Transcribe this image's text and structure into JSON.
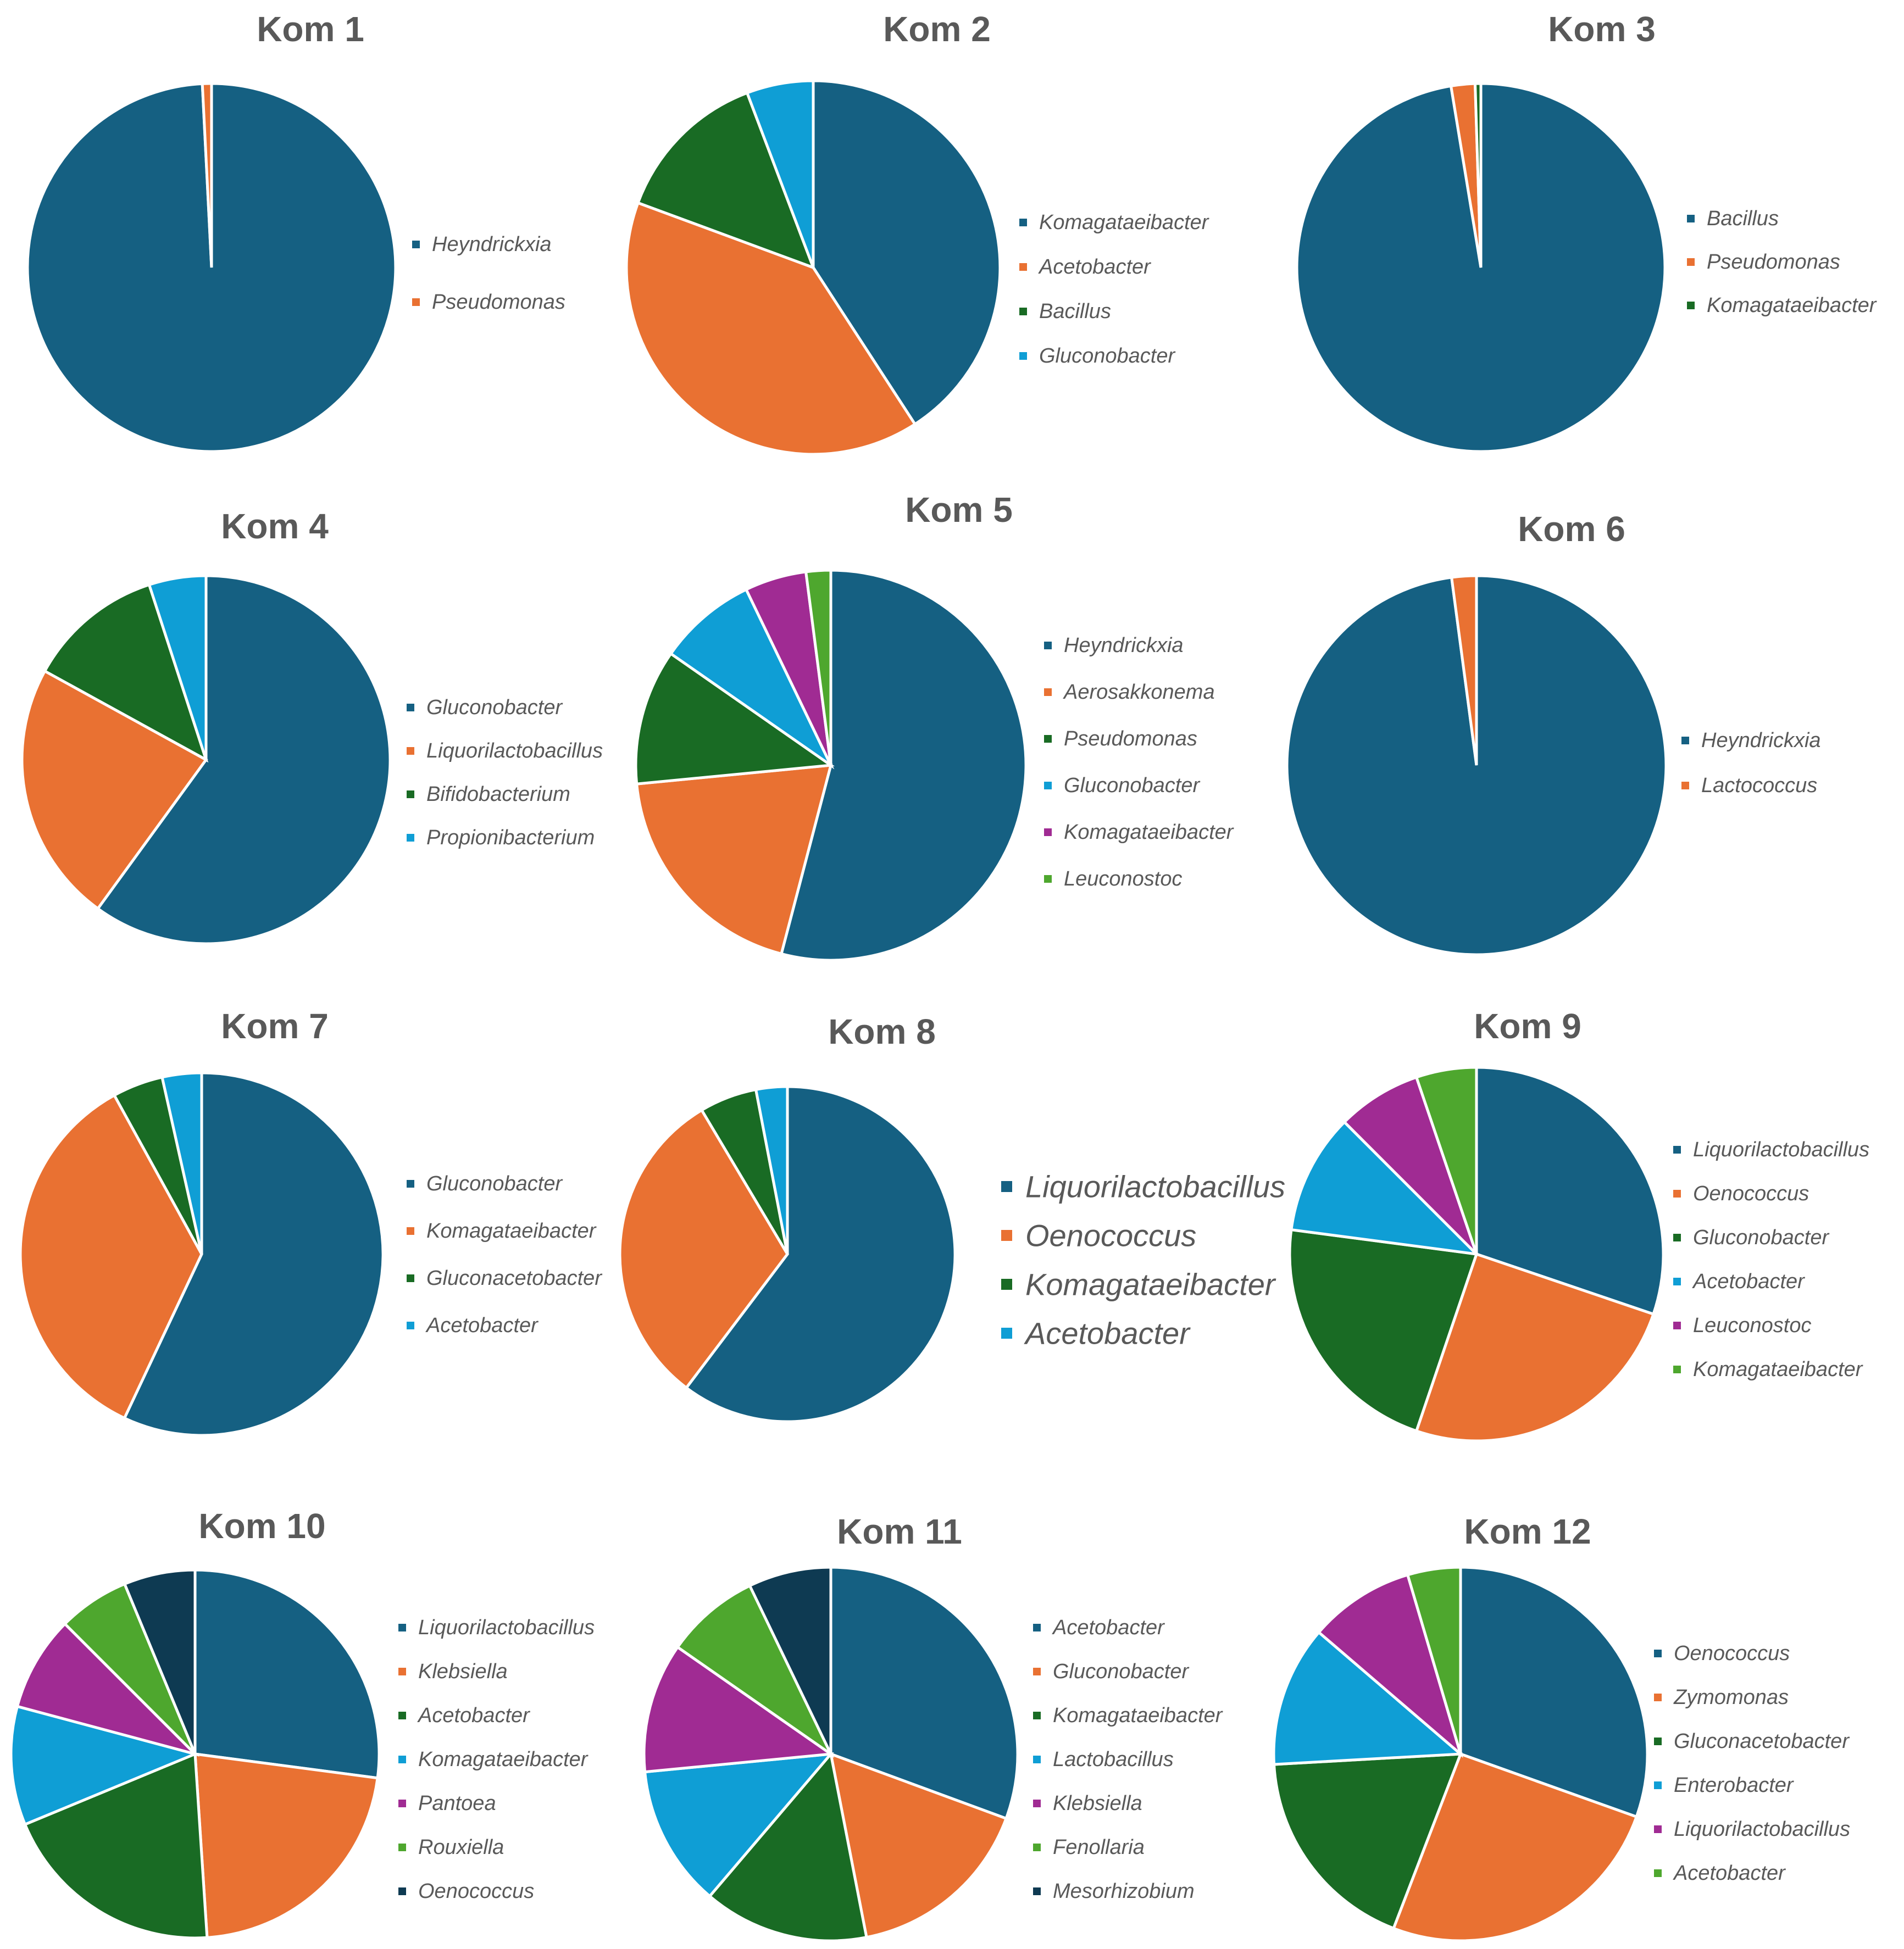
{
  "figure": {
    "description": "Genus-level relative abundance pie charts for 12 kombucha samples"
  },
  "colors": {
    "c1": "#156082",
    "c2": "#E97132",
    "c3": "#196B24",
    "c4": "#0F9ED5",
    "c5": "#A02B93",
    "c6": "#4EA72E",
    "c7": "#0E3A52"
  },
  "chart_data": [
    {
      "type": "pie",
      "title": "Kom 1",
      "categories": [
        "Heyndrickxia",
        "Pseudomonas"
      ],
      "values": [
        99.2,
        0.8
      ],
      "legend_position": "right"
    },
    {
      "type": "pie",
      "title": "Kom 2",
      "categories": [
        "Komagataeibacter",
        "Acetobacter",
        "Bacillus",
        "Gluconobacter"
      ],
      "values": [
        39,
        38,
        13,
        5.5
      ],
      "legend_position": "right"
    },
    {
      "type": "pie",
      "title": "Kom 3",
      "categories": [
        "Bacillus",
        "Pseudomonas",
        "Komagataeibacter"
      ],
      "values": [
        97.4,
        2.1,
        0.5
      ],
      "legend_position": "right"
    },
    {
      "type": "pie",
      "title": "Kom 4",
      "categories": [
        "Gluconobacter",
        "Liquorilactobacillus",
        "Bifidobacterium",
        "Propionibacterium"
      ],
      "values": [
        60,
        23,
        12,
        5
      ],
      "legend_position": "right"
    },
    {
      "type": "pie",
      "title": "Kom 5",
      "categories": [
        "Heyndrickxia",
        "Aerosakkonema",
        "Pseudomonas",
        "Gluconobacter",
        "Komagataeibacter",
        "Leuconostoc"
      ],
      "values": [
        53,
        19,
        11,
        8,
        5,
        2
      ],
      "legend_position": "right"
    },
    {
      "type": "pie",
      "title": "Kom 6",
      "categories": [
        "Heyndrickxia",
        "Lactococcus"
      ],
      "values": [
        97.9,
        2.1
      ],
      "legend_position": "right"
    },
    {
      "type": "pie",
      "title": "Kom 7",
      "categories": [
        "Gluconobacter",
        "Komagataeibacter",
        "Gluconacetobacter",
        "Acetobacter"
      ],
      "values": [
        57,
        35,
        4.5,
        3.5
      ],
      "legend_position": "right"
    },
    {
      "type": "pie",
      "title": "Kom 8",
      "categories": [
        "Liquorilactobacillus",
        "Oenococcus",
        "Komagataeibacter",
        "Acetobacter"
      ],
      "values": [
        60,
        31,
        5.5,
        3
      ],
      "legend_position": "right"
    },
    {
      "type": "pie",
      "title": "Kom 9",
      "categories": [
        "Liquorilactobacillus",
        "Oenococcus",
        "Gluconobacter",
        "Acetobacter",
        "Leuconostoc",
        "Komagataeibacter"
      ],
      "values": [
        29,
        24,
        21,
        10,
        7,
        5
      ],
      "legend_position": "right"
    },
    {
      "type": "pie",
      "title": "Kom 10",
      "categories": [
        "Liquorilactobacillus",
        "Klebsiella",
        "Acetobacter",
        "Komagataeibacter",
        "Pantoea",
        "Rouxiella",
        "Oenococcus"
      ],
      "values": [
        26,
        21,
        19,
        10,
        8,
        6,
        6
      ],
      "legend_position": "right"
    },
    {
      "type": "pie",
      "title": "Kom 11",
      "categories": [
        "Acetobacter",
        "Gluconobacter",
        "Komagataeibacter",
        "Lactobacillus",
        "Klebsiella",
        "Fenollaria",
        "Mesorhizobium"
      ],
      "values": [
        30,
        16,
        14,
        12,
        11,
        8,
        7
      ],
      "legend_position": "right"
    },
    {
      "type": "pie",
      "title": "Kom 12",
      "categories": [
        "Oenococcus",
        "Zymomonas",
        "Gluconacetobacter",
        "Enterobacter",
        "Liquorilactobacillus",
        "Acetobacter"
      ],
      "values": [
        30,
        25,
        18,
        12,
        9,
        4.5
      ],
      "legend_position": "right"
    }
  ]
}
